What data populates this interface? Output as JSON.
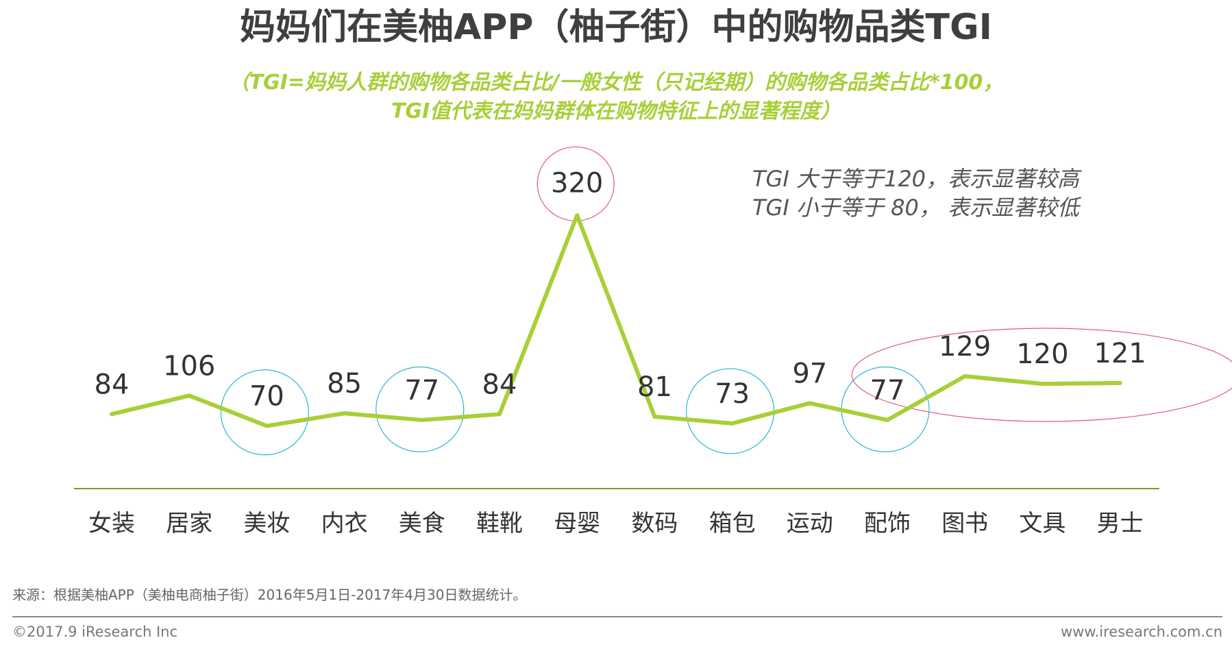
{
  "title": "妈妈们在美柚APP（柚子街）中的购物品类TGI",
  "subtitle": {
    "line1": "（TGI=妈妈人群的购物各品类占比/一般女性（只记经期）的购物各品类占比*100，",
    "line2": "TGI值代表在妈妈群体在购物特征上的显著程度）"
  },
  "note": {
    "line1": "TGI 大于等于120，表示显著较高",
    "line2": "TGI 小于等于 80， 表示显著较低"
  },
  "source": "来源：根据美柚APP（美柚电商柚子街）2016年5月1日-2017年4月30日数据统计。",
  "copyright": "©2017.9 iResearch Inc",
  "website": "www.iresearch.com.cn",
  "colors": {
    "line": "#a8cf38",
    "high_circle": "#e05a6e",
    "low_circle": "#2bb5d8",
    "baseline": "#7a9a2a",
    "label": "#333333"
  },
  "chart_data": {
    "type": "line",
    "categories": [
      "女装",
      "居家",
      "美妆",
      "内衣",
      "美食",
      "鞋靴",
      "母婴",
      "数码",
      "箱包",
      "运动",
      "配饰",
      "图书",
      "文具",
      "男士"
    ],
    "values": [
      84,
      106,
      70,
      85,
      77,
      84,
      320,
      81,
      73,
      97,
      77,
      129,
      120,
      121
    ],
    "data_labels": [
      "84",
      "106",
      "70",
      "85",
      "77",
      "84",
      "320",
      "81",
      "73",
      "97",
      "77",
      "129",
      "120",
      "121"
    ],
    "highlight_high_categories": [
      "母婴",
      "图书",
      "文具",
      "男士"
    ],
    "highlight_low_categories": [
      "美妆",
      "美食",
      "箱包",
      "配饰"
    ],
    "ylim": [
      20,
      330
    ],
    "grid": false,
    "legend": "none"
  }
}
